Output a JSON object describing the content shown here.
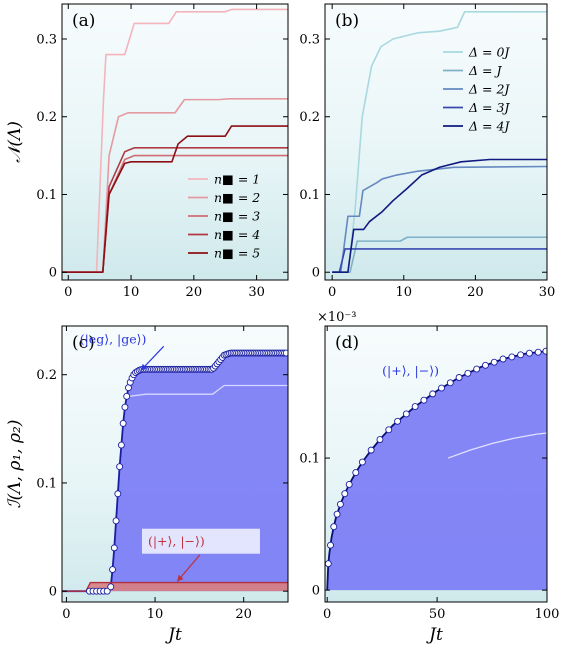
{
  "chart_data": [
    {
      "type": "line",
      "panel": "a",
      "panel_label": "(a)",
      "ylabel": "𝒩(Λ)",
      "xlabel": "",
      "xlim": [
        -1,
        35
      ],
      "ylim": [
        -0.01,
        0.345
      ],
      "xticks": [
        "0",
        "10",
        "20",
        "30"
      ],
      "xtick_values": [
        0,
        10,
        20,
        30
      ],
      "yticks": [
        "0",
        "0.1",
        "0.2",
        "0.3"
      ],
      "ytick_values": [
        0,
        0.1,
        0.2,
        0.3
      ],
      "legend_position": "bottom-right",
      "series": [
        {
          "name": "n■ = 1",
          "color": "#f4b4bc",
          "x": [
            -1,
            4.5,
            5.6,
            6,
            9,
            10.5,
            16,
            17.2,
            25,
            26,
            35
          ],
          "y": [
            0,
            0,
            0.22,
            0.28,
            0.28,
            0.32,
            0.32,
            0.335,
            0.335,
            0.338,
            0.338
          ]
        },
        {
          "name": "n■ = 2",
          "color": "#e59aa2",
          "x": [
            -1,
            5.5,
            6.5,
            8,
            9.5,
            17,
            18.5,
            24,
            25.5,
            35
          ],
          "y": [
            0,
            0,
            0.15,
            0.2,
            0.205,
            0.205,
            0.222,
            0.222,
            0.223,
            0.223
          ]
        },
        {
          "name": "n■ = 3",
          "color": "#cf6d76",
          "x": [
            -1,
            5.5,
            6.5,
            9,
            10.5,
            35
          ],
          "y": [
            0,
            0,
            0.1,
            0.145,
            0.15,
            0.15
          ]
        },
        {
          "name": "n■ = 4",
          "color": "#b03a46",
          "x": [
            -1,
            5.5,
            6.5,
            9,
            10.5,
            35
          ],
          "y": [
            0,
            0,
            0.11,
            0.155,
            0.16,
            0.16
          ]
        },
        {
          "name": "n■ = 5",
          "color": "#8c1016",
          "x": [
            -1,
            5.5,
            6.5,
            9,
            10,
            16.5,
            17.5,
            19,
            25,
            26,
            35
          ],
          "y": [
            0,
            0,
            0.1,
            0.14,
            0.142,
            0.142,
            0.165,
            0.175,
            0.175,
            0.188,
            0.188
          ]
        }
      ]
    },
    {
      "type": "line",
      "panel": "b",
      "panel_label": "(b)",
      "xlabel": "",
      "ylabel": "",
      "xlim": [
        -1,
        30
      ],
      "ylim": [
        -0.01,
        0.345
      ],
      "xticks": [
        "0",
        "10",
        "20",
        "30"
      ],
      "xtick_values": [
        0,
        10,
        20,
        30
      ],
      "yticks": [
        "0",
        "0.1",
        "0.2",
        "0.3"
      ],
      "ytick_values": [
        0,
        0.1,
        0.2,
        0.3
      ],
      "legend_position": "top-right",
      "series": [
        {
          "name": "Δ = 0J",
          "color": "#a8d8e0",
          "x": [
            0,
            2.2,
            3.2,
            4.2,
            5.5,
            6.8,
            8.5,
            12,
            15,
            17.5,
            18.5,
            30
          ],
          "y": [
            0,
            0,
            0.08,
            0.2,
            0.265,
            0.29,
            0.3,
            0.308,
            0.31,
            0.315,
            0.335,
            0.335
          ]
        },
        {
          "name": "Δ = J",
          "color": "#7fb0c8",
          "x": [
            0,
            2.5,
            3.5,
            9.5,
            10.5,
            30
          ],
          "y": [
            0,
            0,
            0.04,
            0.04,
            0.045,
            0.045
          ]
        },
        {
          "name": "Δ = 2J",
          "color": "#6688c0",
          "x": [
            0,
            1.2,
            2.2,
            3.8,
            4.3,
            6.2,
            7,
            9,
            12,
            17,
            30
          ],
          "y": [
            0,
            0,
            0.072,
            0.072,
            0.105,
            0.115,
            0.12,
            0.125,
            0.13,
            0.135,
            0.136
          ]
        },
        {
          "name": "Δ = 3J",
          "color": "#3848b0",
          "x": [
            0,
            1.0,
            1.8,
            30
          ],
          "y": [
            0,
            0,
            0.03,
            0.03
          ]
        },
        {
          "name": "Δ = 4J",
          "color": "#101a80",
          "x": [
            0,
            2.2,
            3.0,
            4.4,
            5.2,
            7,
            8.5,
            10.5,
            12.5,
            15,
            18,
            22,
            30
          ],
          "y": [
            0,
            0,
            0.055,
            0.055,
            0.065,
            0.078,
            0.092,
            0.108,
            0.125,
            0.135,
            0.142,
            0.145,
            0.145
          ]
        }
      ]
    },
    {
      "type": "area",
      "panel": "c",
      "panel_label": "(c)",
      "xlabel": "Jt",
      "ylabel": "ℐ(Λ, ρ₁, ρ₂)",
      "xlim": [
        -0.5,
        25
      ],
      "ylim": [
        -0.01,
        0.245
      ],
      "xticks": [
        "0",
        "10",
        "20"
      ],
      "xtick_values": [
        0,
        10,
        20
      ],
      "yticks": [
        "0",
        "0.1",
        "0.2"
      ],
      "ytick_values": [
        0,
        0.1,
        0.2
      ],
      "fill_color": "#7b7cf5",
      "series": [
        {
          "name": "envelope",
          "color": "#1a1fa0",
          "x": [
            -0.5,
            4.8,
            5.0,
            5.2,
            5.4,
            5.6,
            5.8,
            6.0,
            6.2,
            6.4,
            6.6,
            6.8,
            7.0,
            7.2,
            7.4,
            7.6,
            7.8,
            8.0,
            8.2,
            8.5,
            9.0,
            10,
            16.5,
            17.2,
            17.8,
            18.5,
            25
          ],
          "y": [
            0,
            0,
            0.004,
            0.02,
            0.04,
            0.065,
            0.09,
            0.115,
            0.135,
            0.155,
            0.17,
            0.18,
            0.188,
            0.193,
            0.197,
            0.2,
            0.202,
            0.203,
            0.204,
            0.205,
            0.205,
            0.205,
            0.205,
            0.212,
            0.218,
            0.22,
            0.22
          ]
        },
        {
          "name": "inner-line",
          "color": "#d6d8ff",
          "x": [
            7,
            9,
            16.5,
            17.8,
            25
          ],
          "y": [
            0.18,
            0.182,
            0.182,
            0.19,
            0.19
          ]
        },
        {
          "name": "(|+⟩,|−⟩)",
          "color": "#b03040",
          "x": [
            -0.5,
            2.2,
            2.7,
            25
          ],
          "y": [
            0,
            0,
            0.008,
            0.008
          ]
        }
      ],
      "markers_x": [
        2.6,
        3.0,
        3.4,
        3.8,
        4.2,
        4.6,
        5.0,
        5.2,
        5.4,
        5.6,
        5.8,
        6.0,
        6.2,
        6.4,
        6.6,
        6.8,
        7.0,
        7.2,
        7.4,
        7.6,
        7.8,
        8.0,
        8.2,
        8.4,
        8.6,
        8.8,
        9.0,
        9.2,
        9.4,
        9.6,
        9.8,
        10.0,
        10.2,
        10.4,
        10.6,
        10.8,
        11.0,
        11.2,
        11.4,
        11.6,
        11.8,
        12.0,
        12.2,
        12.4,
        12.6,
        12.8,
        13.0,
        13.2,
        13.4,
        13.6,
        13.8,
        14.0,
        14.2,
        14.4,
        14.6,
        14.8,
        15.0,
        15.2,
        15.4,
        15.6,
        15.8,
        16.0,
        16.2,
        16.4,
        16.6,
        16.8,
        17.0,
        17.2,
        17.4,
        17.6,
        17.8,
        18.0,
        18.2,
        18.4,
        18.6,
        18.8,
        19.0,
        19.2,
        19.4,
        19.6,
        19.8,
        20.0,
        20.2,
        20.4,
        20.6,
        20.8,
        21.0,
        21.2,
        21.4,
        21.6,
        21.8,
        22.0,
        22.2,
        22.4,
        22.6,
        22.8,
        23.0,
        23.2,
        23.4,
        23.6,
        23.8,
        24.0,
        24.2,
        24.4,
        24.6,
        24.8
      ],
      "annotations": [
        {
          "text": "(|eg⟩, |ge⟩)",
          "color": "#2a36e0",
          "x": 1.5,
          "y": 0.229,
          "arrow_to": [
            8.4,
            0.204
          ]
        },
        {
          "text": "(|+⟩, |−⟩)",
          "color": "#c0303c",
          "x": 9.2,
          "y": 0.042,
          "arrow_to": [
            12.5,
            0.009
          ]
        }
      ]
    },
    {
      "type": "area",
      "panel": "d",
      "panel_label": "(d)",
      "xlabel": "Jt",
      "ylabel": "",
      "xlim": [
        -1,
        100
      ],
      "ylim": [
        -0.009,
        0.2
      ],
      "xticks": [
        "0",
        "50",
        "100"
      ],
      "xtick_values": [
        0,
        50,
        100
      ],
      "yticks": [
        "0",
        "0.1"
      ],
      "ytick_values": [
        0,
        0.1
      ],
      "exponent_label": "×10⁻³",
      "fill_color": "#7b7cf5",
      "series": [
        {
          "name": "envelope",
          "color": "#0a0f70",
          "x": [
            0,
            0.5,
            1,
            2,
            3,
            4,
            6,
            8,
            10,
            13,
            16,
            20,
            25,
            30,
            35,
            40,
            45,
            50,
            55,
            60,
            65,
            70,
            75,
            80,
            85,
            90,
            95,
            100
          ],
          "y": [
            0,
            0.02,
            0.028,
            0.04,
            0.048,
            0.055,
            0.065,
            0.073,
            0.08,
            0.089,
            0.097,
            0.106,
            0.116,
            0.125,
            0.132,
            0.139,
            0.145,
            0.151,
            0.156,
            0.161,
            0.165,
            0.169,
            0.172,
            0.175,
            0.177,
            0.179,
            0.18,
            0.181
          ]
        },
        {
          "name": "inner-line",
          "color": "#e0e2ff",
          "x": [
            55,
            65,
            75,
            85,
            95,
            100
          ],
          "y": [
            0.1,
            0.106,
            0.111,
            0.115,
            0.118,
            0.119
          ]
        }
      ],
      "markers_x": [
        0.5,
        1.5,
        3,
        4.5,
        6,
        8,
        10,
        13,
        16,
        20,
        24,
        28,
        32,
        36,
        40,
        44,
        48,
        52,
        56,
        60,
        64,
        68,
        72,
        76,
        80,
        84,
        88,
        92,
        96,
        99.5
      ],
      "annotations": [
        {
          "text": "(|+⟩, |−⟩)",
          "color": "#2a36e0",
          "x": 25,
          "y": 0.163
        }
      ]
    }
  ]
}
